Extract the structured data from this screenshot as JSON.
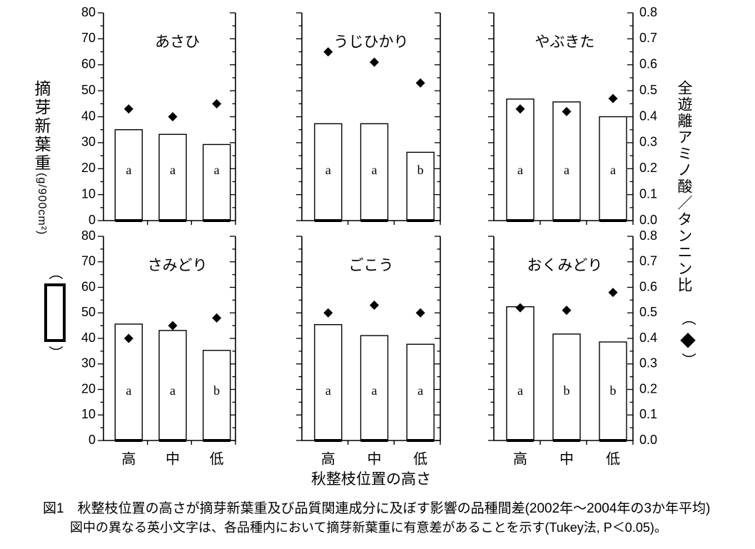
{
  "figure_title": "図1",
  "chart_data": {
    "type": "bar",
    "layout": "2 rows x 3 columns, shared axes, grid off, legend as symbols beside axis labels",
    "categories": [
      "高",
      "中",
      "低"
    ],
    "x_axis_title": "秋整枝位置の高さ",
    "left_axis": {
      "label": "摘芽新葉重(g/900cm²)",
      "label_main": "摘芽新葉重",
      "label_unit": "(g/900cm²)",
      "range": [
        0,
        80
      ],
      "ticks": [
        0,
        10,
        20,
        30,
        40,
        50,
        60,
        70,
        80
      ],
      "series": "bars"
    },
    "right_axis": {
      "label": "全遊離アミノ酸／タンニン比",
      "range": [
        0,
        0.8
      ],
      "ticks": [
        "0.0",
        "0.1",
        "0.2",
        "0.3",
        "0.4",
        "0.5",
        "0.6",
        "0.7",
        "0.8"
      ],
      "series": "diamonds"
    },
    "legend": {
      "open_paren": "（",
      "close_paren": "）",
      "diamond": "◆"
    },
    "panels": [
      {
        "title": "あさひ",
        "bars": [
          35.0,
          33.2,
          29.3
        ],
        "diamonds": [
          0.43,
          0.4,
          0.45
        ],
        "letters": [
          "a",
          "a",
          "a"
        ]
      },
      {
        "title": "うじひかり",
        "bars": [
          37.3,
          37.3,
          26.3
        ],
        "diamonds": [
          0.65,
          0.61,
          0.53
        ],
        "letters": [
          "a",
          "a",
          "b"
        ]
      },
      {
        "title": "やぶきた",
        "bars": [
          46.8,
          45.7,
          40.0
        ],
        "diamonds": [
          0.43,
          0.42,
          0.47
        ],
        "letters": [
          "a",
          "a",
          "a"
        ]
      },
      {
        "title": "さみどり",
        "bars": [
          45.6,
          43.1,
          35.3
        ],
        "diamonds": [
          0.4,
          0.45,
          0.48
        ],
        "letters": [
          "a",
          "a",
          "b"
        ]
      },
      {
        "title": "ごこう",
        "bars": [
          45.4,
          41.1,
          37.7
        ],
        "diamonds": [
          0.5,
          0.53,
          0.5
        ],
        "letters": [
          "a",
          "a",
          "a"
        ]
      },
      {
        "title": "おくみどり",
        "bars": [
          52.4,
          41.7,
          38.6
        ],
        "diamonds": [
          0.52,
          0.51,
          0.58
        ],
        "letters": [
          "a",
          "b",
          "b"
        ]
      }
    ]
  },
  "caption": {
    "line1": "図1　秋整枝位置の高さが摘芽新葉重及び品質関連成分に及ぼす影響の品種間差(2002年～2004年の3か年平均)",
    "line2": "図中の異なる英小文字は、各品種内において摘芽新葉重に有意差があることを示す(Tukey法, P＜0.05)。"
  }
}
